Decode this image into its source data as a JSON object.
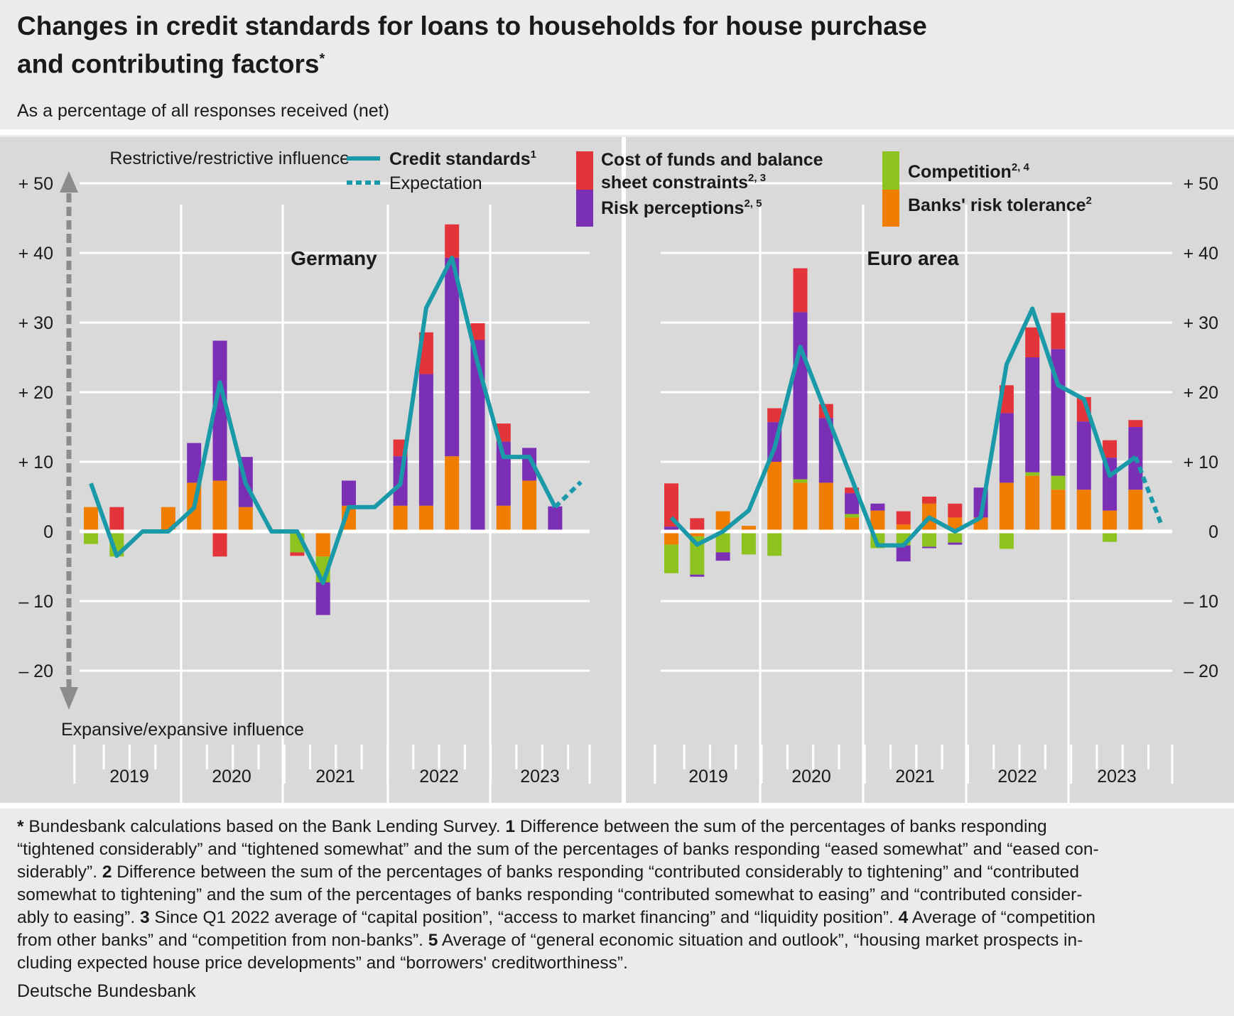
{
  "title_line1": "Changes in credit standards for loans to households for house purchase",
  "title_line2": "and contributing factors",
  "title_mark": "*",
  "subtitle": "As a percentage of all responses received (net)",
  "colors": {
    "credit_standards": "#1a9aa8",
    "cost_of_funds": "#e3343a",
    "risk_perceptions": "#7b2fb5",
    "competition": "#8dc21f",
    "risk_tolerance": "#f07c00",
    "arrow": "#8c8c8c"
  },
  "chart_data": {
    "type": "bar",
    "y_axis": {
      "ylim": [
        -20,
        50
      ],
      "ticks": [
        50,
        40,
        30,
        20,
        10,
        0,
        -10,
        -20
      ],
      "tick_labels": [
        "+ 50",
        "+ 40",
        "+ 30",
        "+ 20",
        "+ 10",
        "0",
        "– 10",
        "– 20"
      ]
    },
    "axis_labels": {
      "top": "Restrictive/restrictive influence",
      "bottom": "Expansive/expansive influence"
    },
    "legend": {
      "credit_standards": "Credit standards",
      "credit_standards_sup": "1",
      "expectation": "Expectation",
      "cost_of_funds_line1": "Cost of funds and balance",
      "cost_of_funds_line2": "sheet constraints",
      "cost_of_funds_sup": "2, 3",
      "risk_perceptions": "Risk perceptions",
      "risk_perceptions_sup": "2, 5",
      "competition": "Competition",
      "competition_sup": "2, 4",
      "risk_tolerance": "Banks' risk tolerance",
      "risk_tolerance_sup": "2"
    },
    "years": [
      "2019",
      "2020",
      "2021",
      "2022",
      "2023"
    ],
    "panels": [
      {
        "name": "Germany",
        "quarters": [
          "2019 Q1",
          "2019 Q2",
          "2019 Q3",
          "2019 Q4",
          "2020 Q1",
          "2020 Q2",
          "2020 Q3",
          "2020 Q4",
          "2021 Q1",
          "2021 Q2",
          "2021 Q3",
          "2021 Q4",
          "2022 Q1",
          "2022 Q2",
          "2022 Q3",
          "2022 Q4",
          "2023 Q1",
          "2023 Q2",
          "2023 Q3",
          "2023 Q4"
        ],
        "series": [
          {
            "name": "Banks' risk tolerance",
            "values": [
              3.5,
              0,
              0,
              3.5,
              7,
              7.3,
              3.5,
              0,
              0,
              -3.6,
              3.7,
              0,
              3.7,
              3.7,
              10.8,
              0,
              3.7,
              7.3,
              0,
              0
            ]
          },
          {
            "name": "Competition",
            "values": [
              -1.8,
              -3.6,
              0,
              0,
              0,
              0,
              0,
              0,
              -3,
              -3.7,
              0,
              0,
              0,
              0,
              0,
              0,
              0,
              0,
              0,
              0
            ]
          },
          {
            "name": "Risk perceptions",
            "values": [
              0,
              0,
              0,
              0,
              5.7,
              20.1,
              7.2,
              0,
              0,
              -4.7,
              3.6,
              0,
              7.1,
              18.9,
              28.5,
              27.5,
              9.2,
              4.7,
              3.6,
              0
            ]
          },
          {
            "name": "Cost of funds and balance sheet constraints",
            "values": [
              0,
              3.5,
              0,
              0,
              0,
              -3.6,
              0,
              0,
              -0.5,
              0,
              0,
              0,
              2.4,
              6,
              4.8,
              2.4,
              2.6,
              0,
              0,
              0
            ]
          },
          {
            "name": "Credit standards",
            "values": [
              6.9,
              -3.5,
              0,
              0,
              3.4,
              21.4,
              6.9,
              0,
              0,
              -7.4,
              3.5,
              3.5,
              6.8,
              32.1,
              39.3,
              24.1,
              10.7,
              10.7,
              3.5,
              null
            ]
          },
          {
            "name": "Expectation",
            "values": [
              null,
              null,
              null,
              null,
              null,
              null,
              null,
              null,
              null,
              null,
              null,
              null,
              null,
              null,
              null,
              null,
              null,
              null,
              3.5,
              7.1
            ]
          }
        ]
      },
      {
        "name": "Euro area",
        "quarters": [
          "2019 Q1",
          "2019 Q2",
          "2019 Q3",
          "2019 Q4",
          "2020 Q1",
          "2020 Q2",
          "2020 Q3",
          "2020 Q4",
          "2021 Q1",
          "2021 Q2",
          "2021 Q3",
          "2021 Q4",
          "2022 Q1",
          "2022 Q2",
          "2022 Q3",
          "2022 Q4",
          "2023 Q1",
          "2023 Q2",
          "2023 Q3",
          "2023 Q4"
        ],
        "series": [
          {
            "name": "Banks' risk tolerance",
            "values": [
              -1.9,
              -0.7,
              2.9,
              0.8,
              10,
              7,
              7,
              2,
              3,
              1,
              4,
              2,
              2,
              7,
              8,
              6,
              6,
              3,
              6,
              0
            ]
          },
          {
            "name": "Competition",
            "values": [
              -4.1,
              -5.5,
              -3,
              -3.3,
              -3.5,
              0.5,
              0,
              0.5,
              -2.4,
              -2,
              -2.2,
              -1.6,
              0,
              -2.5,
              0.5,
              2,
              0,
              -1.5,
              0,
              0
            ]
          },
          {
            "name": "Risk perceptions",
            "values": [
              0.7,
              -0.3,
              -1.2,
              0,
              5.7,
              24,
              9.3,
              3,
              1,
              -2.3,
              -0.2,
              -0.3,
              4.3,
              10,
              16.5,
              18.2,
              9.8,
              7.6,
              9,
              0
            ]
          },
          {
            "name": "Cost of funds and balance sheet constraints",
            "values": [
              6.2,
              1.9,
              0,
              0,
              2,
              6.3,
              2,
              0.8,
              0,
              1.9,
              1,
              2,
              0,
              4,
              4.3,
              5.2,
              3.5,
              2.5,
              1,
              0
            ]
          },
          {
            "name": "Credit standards",
            "values": [
              2,
              -1.9,
              0,
              3,
              12,
              26.5,
              17,
              7.5,
              -2,
              -2,
              2,
              0,
              2,
              24,
              32,
              21,
              19,
              8,
              10.7,
              null
            ]
          },
          {
            "name": "Expectation",
            "values": [
              null,
              null,
              null,
              null,
              null,
              null,
              null,
              null,
              null,
              null,
              null,
              null,
              null,
              null,
              null,
              null,
              null,
              null,
              10.7,
              1
            ]
          }
        ]
      }
    ]
  },
  "footnote": {
    "star": "*",
    "star_text": " Bundesbank calculations based on the Bank Lending Survey.",
    "n1": " 1",
    "n1_text": " Difference between the sum of the percentages of banks responding",
    "line2": "“tightened considerably” and “tightened somewhat” and the sum of the percentages of banks responding “eased somewhat” and “eased con-",
    "line3a": "siderably”.",
    "n2": " 2",
    "line3b": " Difference between the sum of the percentages of banks responding “contributed considerably to tightening” and “contributed",
    "line4": "somewhat to tightening” and the sum of the percentages of banks responding “contributed somewhat to easing” and “contributed consider-",
    "line5a": "ably to easing”.",
    "n3": " 3",
    "line5b": " Since Q1 2022 average of “capital position”, “access to market financing” and “liquidity position”.",
    "n4": " 4",
    "line5c": " Average of “competition",
    "line6a": "from other banks” and “competition from non-banks”.",
    "n5": " 5",
    "line6b": " Average of “general economic situation and outlook”, “housing market prospects in-",
    "line7": "cluding expected house price developments” and  “borrowers' creditworthiness”."
  },
  "source": "Deutsche Bundesbank"
}
